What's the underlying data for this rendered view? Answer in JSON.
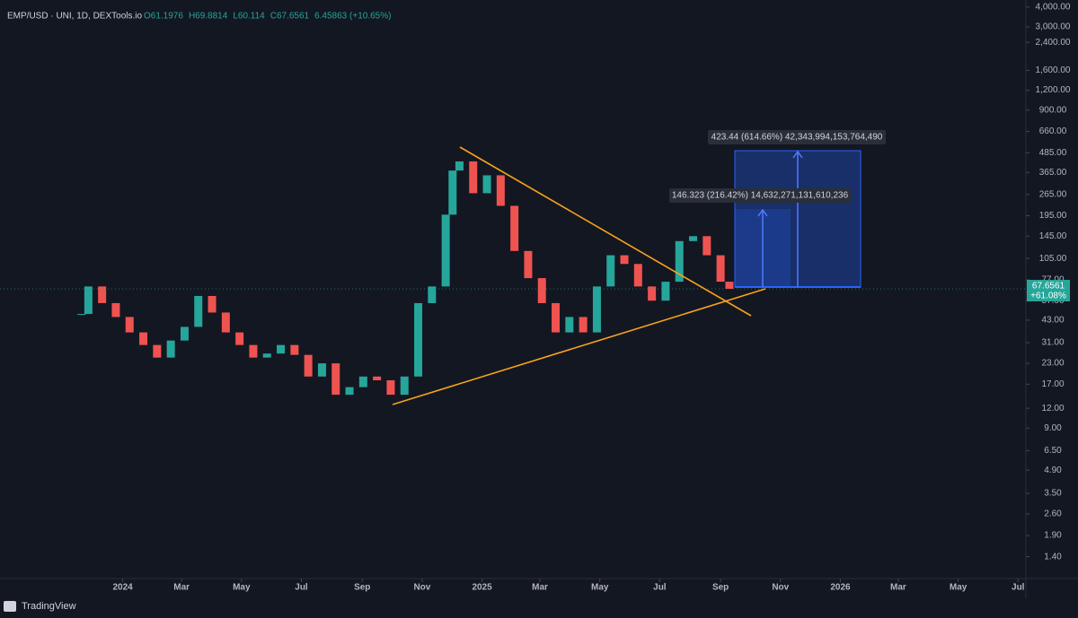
{
  "chart_data": {
    "type": "candlestick",
    "legend": {
      "symbol": "EMP/USD · UNI, 1D, DEXTools.io",
      "ohlc": [
        "O61.1976",
        "H69.8814",
        "L60.114",
        "C67.6561",
        "6.45863 (+10.65%)"
      ]
    },
    "x": [
      "2023-11-20",
      "2023-11-27",
      "2023-12-11",
      "2023-12-25",
      "2024-01-08",
      "2024-01-22",
      "2024-02-05",
      "2024-02-19",
      "2024-03-04",
      "2024-03-18",
      "2024-04-01",
      "2024-04-15",
      "2024-04-29",
      "2024-05-13",
      "2024-05-27",
      "2024-06-10",
      "2024-06-24",
      "2024-07-08",
      "2024-07-22",
      "2024-08-05",
      "2024-08-19",
      "2024-09-02",
      "2024-09-16",
      "2024-09-30",
      "2024-10-14",
      "2024-10-28",
      "2024-11-11",
      "2024-11-25",
      "2024-12-02",
      "2024-12-09",
      "2024-12-23",
      "2025-01-06",
      "2025-01-20",
      "2025-02-03",
      "2025-02-17",
      "2025-03-03",
      "2025-03-17",
      "2025-03-31",
      "2025-04-14",
      "2025-04-28",
      "2025-05-12",
      "2025-05-26",
      "2025-06-09",
      "2025-06-23",
      "2025-07-07",
      "2025-07-21",
      "2025-08-04",
      "2025-08-18",
      "2025-09-01",
      "2025-09-10"
    ],
    "series": [
      {
        "name": "EMP/USD",
        "up_color": "#26a69a",
        "down_color": "#ef5350",
        "values": [
          47,
          70,
          55,
          45,
          36,
          30,
          25,
          32,
          39,
          61,
          48,
          36,
          30,
          25,
          26.5,
          30,
          26,
          19,
          23,
          14.6,
          16.3,
          19,
          18,
          14.6,
          19,
          55,
          70,
          198,
          375,
          428,
          270,
          350,
          225,
          117,
          79,
          55,
          36,
          45,
          36,
          70,
          110,
          97,
          70,
          57,
          75,
          135,
          145,
          110,
          75,
          67.66
        ]
      }
    ],
    "xlim": [
      "2023-08-29",
      "2026-07-09"
    ],
    "xticks": [
      {
        "value": "2024-01-01",
        "label": "2024"
      },
      {
        "value": "2024-03-01",
        "label": "Mar"
      },
      {
        "value": "2024-05-01",
        "label": "May"
      },
      {
        "value": "2024-07-01",
        "label": "Jul"
      },
      {
        "value": "2024-09-01",
        "label": "Sep"
      },
      {
        "value": "2024-11-01",
        "label": "Nov"
      },
      {
        "value": "2025-01-01",
        "label": "2025"
      },
      {
        "value": "2025-03-01",
        "label": "Mar"
      },
      {
        "value": "2025-05-01",
        "label": "May"
      },
      {
        "value": "2025-07-01",
        "label": "Jul"
      },
      {
        "value": "2025-09-01",
        "label": "Sep"
      },
      {
        "value": "2025-11-01",
        "label": "Nov"
      },
      {
        "value": "2026-01-01",
        "label": "2026"
      },
      {
        "value": "2026-03-01",
        "label": "Mar"
      },
      {
        "value": "2026-05-01",
        "label": "May"
      },
      {
        "value": "2026-07-01",
        "label": "Jul"
      }
    ],
    "ylim": [
      1.02,
      4430
    ],
    "log_scale": true,
    "grid": false,
    "yticks": [
      {
        "value": 4000,
        "label": "4,000.00"
      },
      {
        "value": 3000,
        "label": "3,000.00"
      },
      {
        "value": 2400,
        "label": "2,400.00"
      },
      {
        "value": 1600,
        "label": "1,600.00"
      },
      {
        "value": 1200,
        "label": "1,200.00"
      },
      {
        "value": 900,
        "label": "900.00"
      },
      {
        "value": 660,
        "label": "660.00"
      },
      {
        "value": 485,
        "label": "485.00"
      },
      {
        "value": 365,
        "label": "365.00"
      },
      {
        "value": 265,
        "label": "265.00"
      },
      {
        "value": 195,
        "label": "195.00"
      },
      {
        "value": 145,
        "label": "145.00"
      },
      {
        "value": 105,
        "label": "105.00"
      },
      {
        "value": 77,
        "label": "77.00"
      },
      {
        "value": 57,
        "label": "57.00"
      },
      {
        "value": 43,
        "label": "43.00"
      },
      {
        "value": 31,
        "label": "31.00"
      },
      {
        "value": 23,
        "label": "23.00"
      },
      {
        "value": 17,
        "label": "17.00"
      },
      {
        "value": 12,
        "label": "12.00"
      },
      {
        "value": 9,
        "label": "9.00"
      },
      {
        "value": 6.5,
        "label": "6.50"
      },
      {
        "value": 4.9,
        "label": "4.90"
      },
      {
        "value": 3.5,
        "label": "3.50"
      },
      {
        "value": 2.6,
        "label": "2.60"
      },
      {
        "value": 1.9,
        "label": "1.90"
      },
      {
        "value": 1.4,
        "label": "1.40"
      }
    ],
    "last_price": {
      "label": "67.6561",
      "change": "+61.08%"
    },
    "measures": [
      "423.44 (614.66%) 42,343,994,153,764,490",
      "146.323 (216.42%) 14,632,271,131,610,236"
    ]
  },
  "footer": {
    "brand": "TradingView"
  }
}
